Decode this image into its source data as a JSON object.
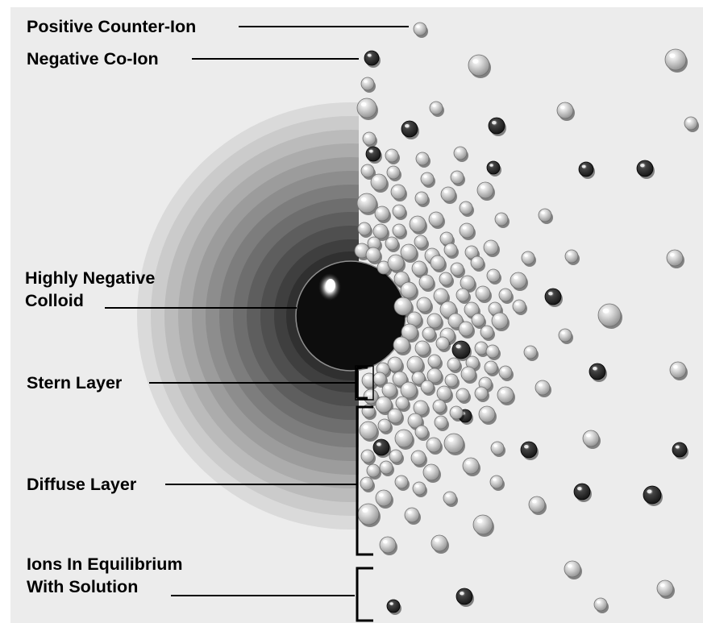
{
  "labels": {
    "positive_counter_ion": "Positive Counter-Ion",
    "negative_co_ion": "Negative Co-Ion",
    "highly_negative_colloid_line1": "Highly Negative",
    "highly_negative_colloid_line2": "Colloid",
    "stern_layer": "Stern Layer",
    "diffuse_layer": "Diffuse Layer",
    "ions_equilibrium_line1": "Ions In Equilibrium",
    "ions_equilibrium_line2": "With Solution"
  },
  "colors": {
    "background": "#ececec",
    "colloid": "#0d0d0d",
    "positive_ion": "#c8c8c8",
    "negative_ion": "#2a2a2a",
    "leader_line": "#000000"
  },
  "icons": [
    "positive-ion-icon",
    "negative-ion-icon",
    "colloid-icon"
  ]
}
